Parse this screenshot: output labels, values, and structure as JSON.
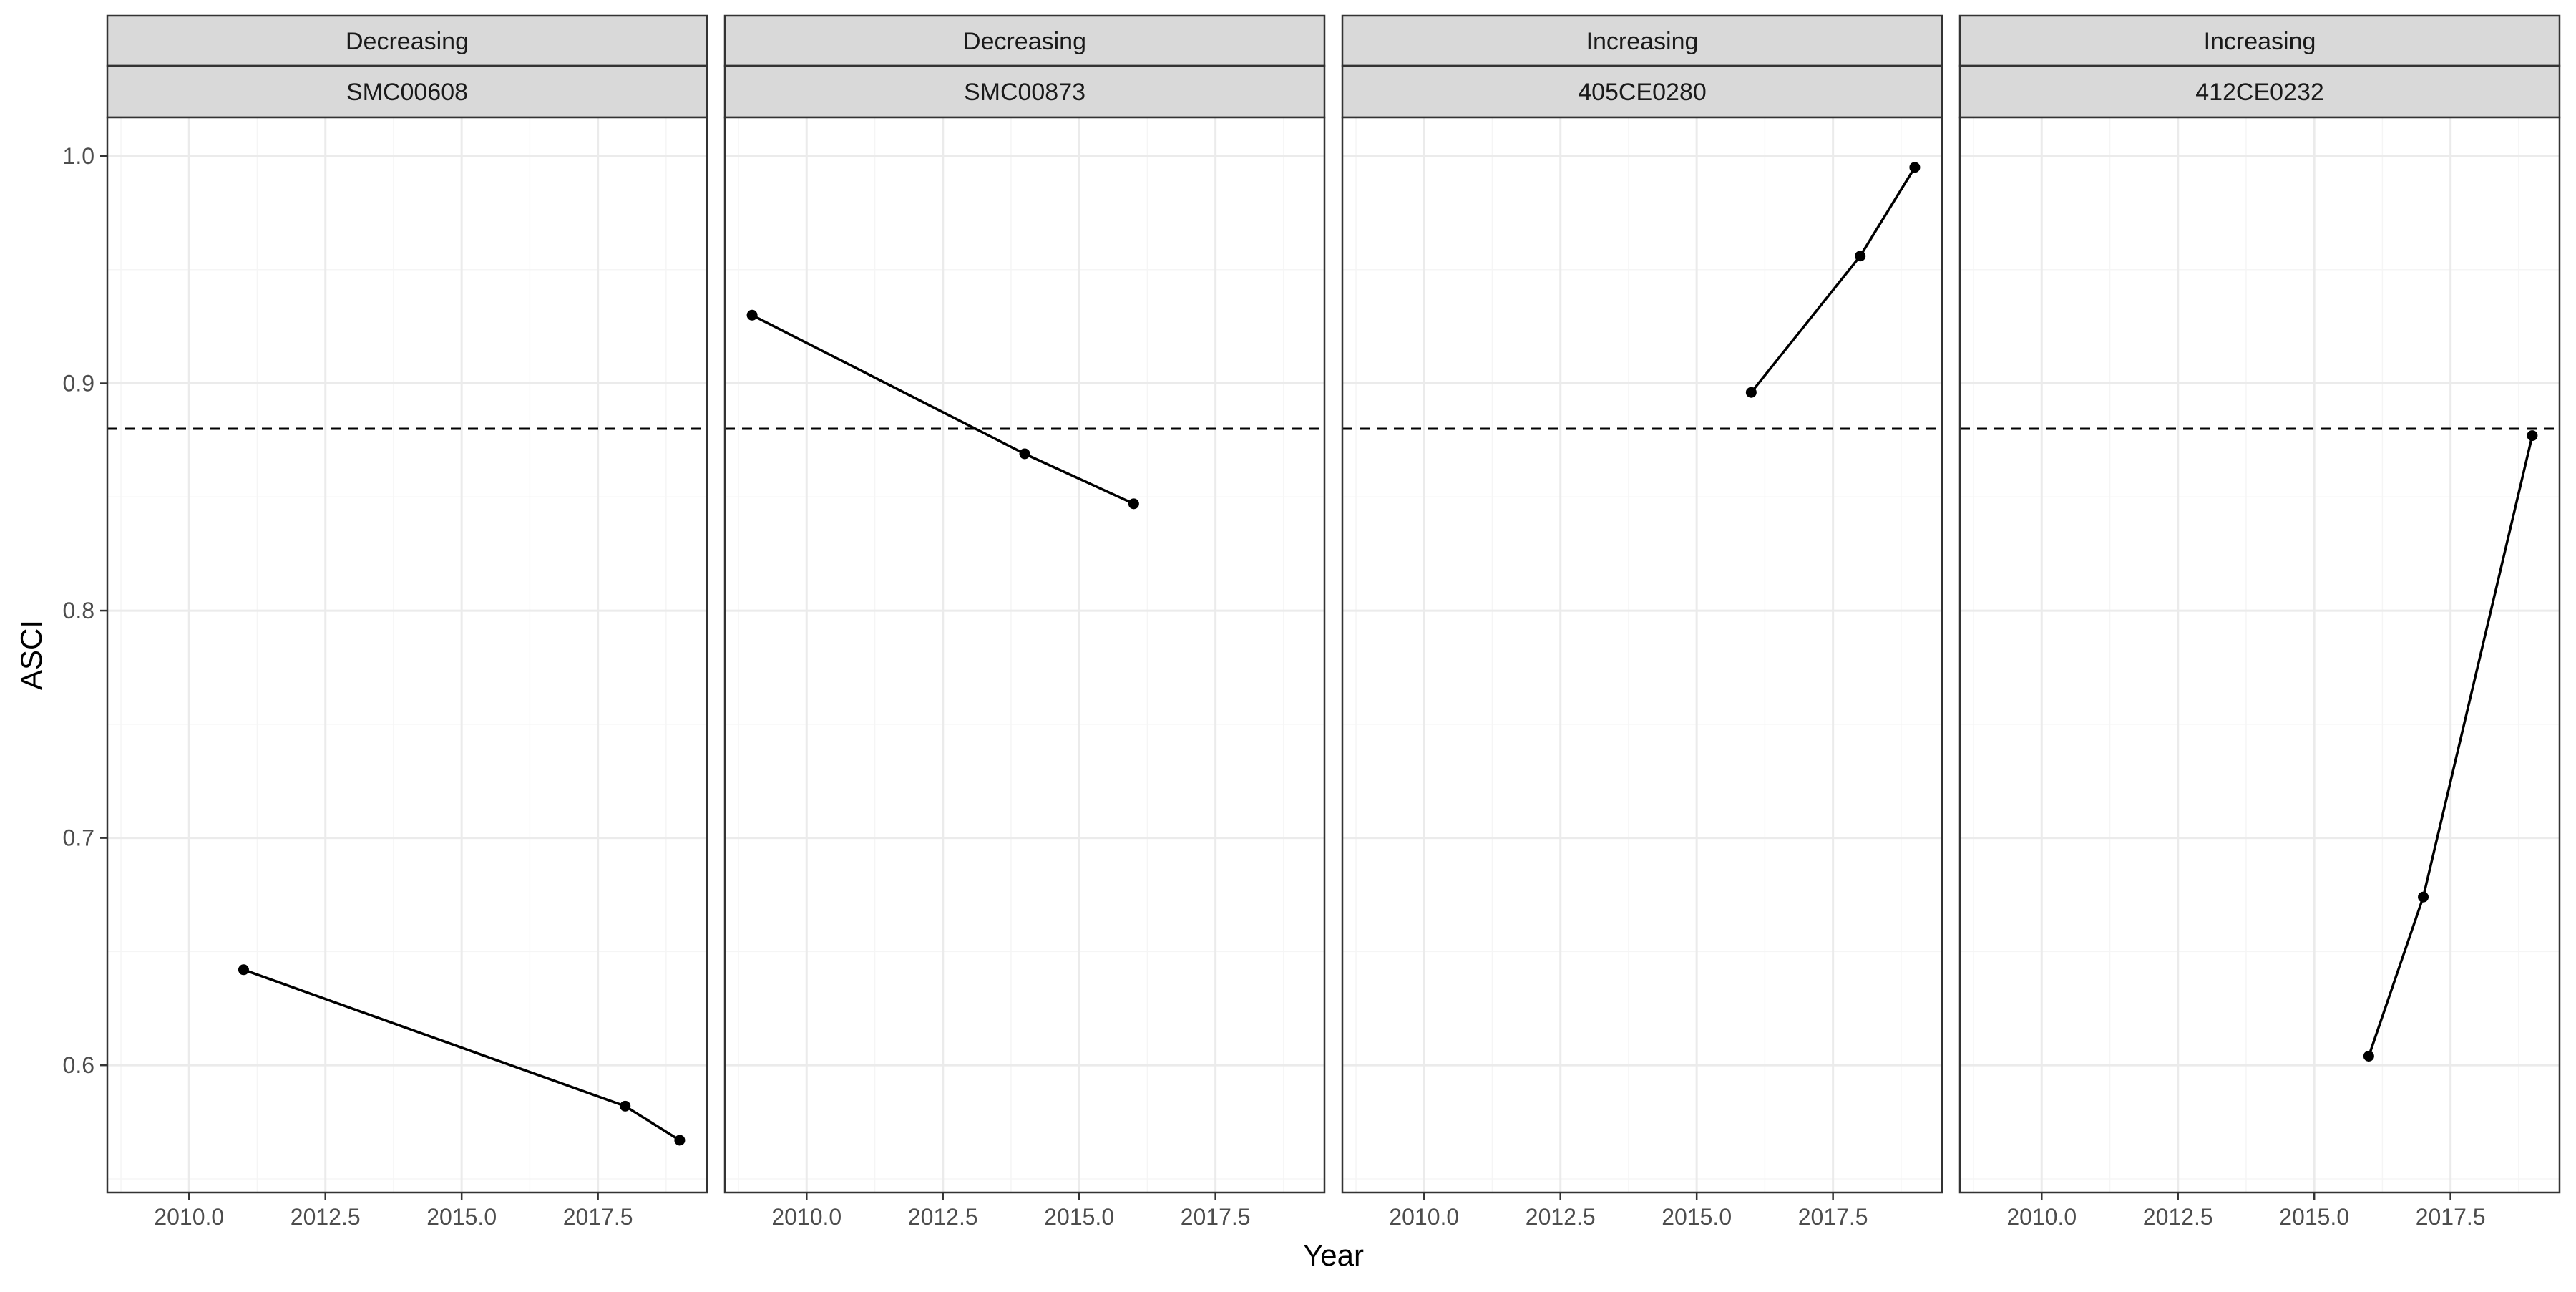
{
  "chart_data": {
    "type": "line",
    "xlabel": "Year",
    "ylabel": "ASCI",
    "xlim": [
      2008.5,
      2019.5
    ],
    "ylim": [
      0.544,
      1.017
    ],
    "x_ticks": [
      2010.0,
      2012.5,
      2015.0,
      2017.5
    ],
    "x_tick_labels": [
      "2010.0",
      "2012.5",
      "2015.0",
      "2017.5"
    ],
    "y_ticks": [
      0.6,
      0.7,
      0.8,
      0.9,
      1.0
    ],
    "y_tick_labels": [
      "0.6",
      "0.7",
      "0.8",
      "0.9",
      "1.0"
    ],
    "reference_line": {
      "y": 0.88,
      "style": "dashed",
      "color": "#000000"
    },
    "grid": true,
    "colors": {
      "strip_fill": "#d9d9d9",
      "panel_border": "#333333",
      "grid_major": "#ebebeb",
      "grid_minor": "#f5f5f5",
      "series": "#000000"
    },
    "panels": [
      {
        "trend": "Decreasing",
        "site": "SMC00608",
        "series": [
          {
            "x": [
              2011,
              2018,
              2019
            ],
            "y": [
              0.642,
              0.582,
              0.567
            ]
          }
        ]
      },
      {
        "trend": "Decreasing",
        "site": "SMC00873",
        "series": [
          {
            "x": [
              2009,
              2014,
              2016
            ],
            "y": [
              0.93,
              0.869,
              0.847
            ]
          }
        ]
      },
      {
        "trend": "Increasing",
        "site": "405CE0280",
        "series": [
          {
            "x": [
              2016,
              2018,
              2019
            ],
            "y": [
              0.896,
              0.956,
              0.995
            ]
          }
        ]
      },
      {
        "trend": "Increasing",
        "site": "412CE0232",
        "series": [
          {
            "x": [
              2016,
              2017,
              2019
            ],
            "y": [
              0.604,
              0.674,
              0.877
            ]
          }
        ]
      }
    ]
  }
}
